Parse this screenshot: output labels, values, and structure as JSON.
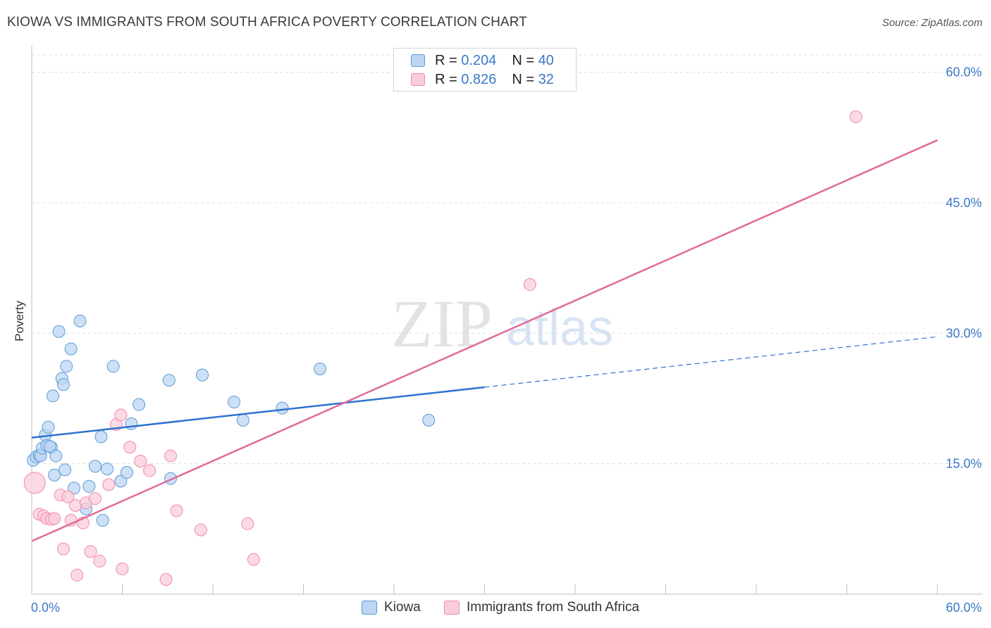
{
  "title": "KIOWA VS IMMIGRANTS FROM SOUTH AFRICA POVERTY CORRELATION CHART",
  "source": "Source: ZipAtlas.com",
  "watermark": {
    "zip": "ZIP",
    "atlas": "atlas"
  },
  "legend_top": [
    {
      "r_label": "R =",
      "r_value": "0.204",
      "n_label": "N =",
      "n_value": "40"
    },
    {
      "r_label": "R =",
      "r_value": "0.826",
      "n_label": "N =",
      "n_value": "32"
    }
  ],
  "chart_data": {
    "type": "scatter",
    "title": "KIOWA VS IMMIGRANTS FROM SOUTH AFRICA POVERTY CORRELATION CHART",
    "xlabel": "",
    "ylabel": "Poverty",
    "xlim": [
      0,
      60
    ],
    "ylim": [
      0,
      62
    ],
    "x_tick_labels": [
      "0.0%",
      "60.0%"
    ],
    "y_ticks": [
      15,
      30,
      45,
      60
    ],
    "y_tick_labels": [
      "15.0%",
      "30.0%",
      "45.0%",
      "60.0%"
    ],
    "grid": true,
    "colors": {
      "kiowa": "#5b9bd5",
      "kiowa_line": "#2f72d0",
      "safrica": "#f08aaa",
      "safrica_line": "#e06a96",
      "tick_text": "#3a78c8"
    },
    "series": [
      {
        "name": "Kiowa",
        "r": 0.204,
        "n": 40,
        "trend": {
          "x0": 0,
          "y0": 18.0,
          "x1": 30,
          "y1": 23.8,
          "dash_x1": 60,
          "dash_y1": 29.6
        },
        "points": [
          [
            0.1,
            15.4
          ],
          [
            0.3,
            15.8
          ],
          [
            0.5,
            16.0
          ],
          [
            0.6,
            15.9
          ],
          [
            0.7,
            16.8
          ],
          [
            0.9,
            18.3
          ],
          [
            1.0,
            17.1
          ],
          [
            1.1,
            19.2
          ],
          [
            1.3,
            16.9
          ],
          [
            1.2,
            17.0
          ],
          [
            1.4,
            22.8
          ],
          [
            1.5,
            13.7
          ],
          [
            1.6,
            15.9
          ],
          [
            1.8,
            30.2
          ],
          [
            2.0,
            24.8
          ],
          [
            2.1,
            24.1
          ],
          [
            2.2,
            14.3
          ],
          [
            2.3,
            26.2
          ],
          [
            2.6,
            28.2
          ],
          [
            2.8,
            12.2
          ],
          [
            3.2,
            31.4
          ],
          [
            3.6,
            9.8
          ],
          [
            3.8,
            12.4
          ],
          [
            4.2,
            14.7
          ],
          [
            4.6,
            18.1
          ],
          [
            4.7,
            8.5
          ],
          [
            5.0,
            14.4
          ],
          [
            5.4,
            26.2
          ],
          [
            5.9,
            13.0
          ],
          [
            6.3,
            14.0
          ],
          [
            6.6,
            19.6
          ],
          [
            7.1,
            21.8
          ],
          [
            9.1,
            24.6
          ],
          [
            9.2,
            13.3
          ],
          [
            11.3,
            25.2
          ],
          [
            13.4,
            22.1
          ],
          [
            14.0,
            20.0
          ],
          [
            16.6,
            21.4
          ],
          [
            19.1,
            25.9
          ],
          [
            26.3,
            20.0
          ]
        ]
      },
      {
        "name": "Immigrants from South Africa",
        "r": 0.826,
        "n": 32,
        "trend": {
          "x0": 0,
          "y0": 6.1,
          "x1": 60,
          "y1": 52.2
        },
        "points": [
          [
            0.2,
            12.8
          ],
          [
            0.5,
            9.2
          ],
          [
            0.8,
            9.0
          ],
          [
            1.0,
            8.7
          ],
          [
            1.3,
            8.6
          ],
          [
            1.5,
            8.7
          ],
          [
            1.9,
            11.4
          ],
          [
            2.1,
            5.2
          ],
          [
            2.4,
            11.2
          ],
          [
            2.6,
            8.5
          ],
          [
            2.9,
            10.2
          ],
          [
            3.0,
            2.2
          ],
          [
            3.4,
            8.2
          ],
          [
            3.6,
            10.5
          ],
          [
            3.9,
            4.9
          ],
          [
            4.2,
            11.0
          ],
          [
            4.5,
            3.8
          ],
          [
            5.1,
            12.6
          ],
          [
            5.6,
            19.5
          ],
          [
            5.9,
            20.6
          ],
          [
            6.0,
            2.9
          ],
          [
            6.5,
            16.9
          ],
          [
            7.2,
            15.3
          ],
          [
            7.8,
            14.2
          ],
          [
            8.9,
            1.7
          ],
          [
            9.2,
            15.9
          ],
          [
            9.6,
            9.6
          ],
          [
            11.2,
            7.4
          ],
          [
            14.3,
            8.1
          ],
          [
            14.7,
            4.0
          ],
          [
            33.0,
            35.6
          ],
          [
            54.6,
            54.9
          ]
        ]
      }
    ]
  },
  "legend_bottom": [
    "Kiowa",
    "Immigrants from South Africa"
  ]
}
